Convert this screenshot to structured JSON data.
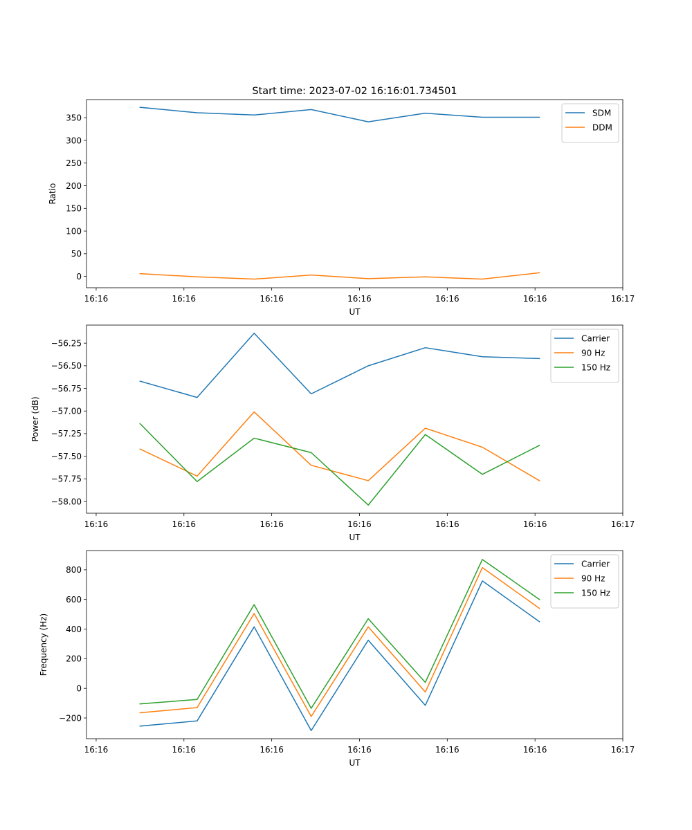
{
  "title": "Start time: 2023-07-02 16:16:01.734501",
  "chart_data": [
    {
      "type": "line",
      "xlabel": "UT",
      "ylabel": "Ratio",
      "x": [
        0.5,
        1.15,
        1.8,
        2.45,
        3.1,
        3.75,
        4.4,
        5.05
      ],
      "xlim": [
        -0.11,
        6.0
      ],
      "xticks": [
        0,
        1,
        2,
        3,
        4,
        5,
        6
      ],
      "xtick_labels": [
        "16:16",
        "16:16",
        "16:16",
        "16:16",
        "16:16",
        "16:16",
        "16:17"
      ],
      "ylim": [
        -25,
        390
      ],
      "yticks": [
        0,
        50,
        100,
        150,
        200,
        250,
        300,
        350
      ],
      "legend_position": "top-right",
      "series": [
        {
          "name": "SDM",
          "color": "#1f77b4",
          "values": [
            373,
            361,
            356,
            368,
            341,
            360,
            351,
            351
          ]
        },
        {
          "name": "DDM",
          "color": "#ff7f0e",
          "values": [
            6,
            -1,
            -6,
            3,
            -5,
            -1,
            -6,
            8
          ]
        }
      ]
    },
    {
      "type": "line",
      "xlabel": "UT",
      "ylabel": "Power (dB)",
      "x": [
        0.5,
        1.15,
        1.8,
        2.45,
        3.1,
        3.75,
        4.4,
        5.05
      ],
      "xlim": [
        -0.11,
        6.0
      ],
      "xticks": [
        0,
        1,
        2,
        3,
        4,
        5,
        6
      ],
      "xtick_labels": [
        "16:16",
        "16:16",
        "16:16",
        "16:16",
        "16:16",
        "16:16",
        "16:17"
      ],
      "ylim": [
        -58.13,
        -56.05
      ],
      "yticks": [
        -58.0,
        -57.75,
        -57.5,
        -57.25,
        -57.0,
        -56.75,
        -56.5,
        -56.25
      ],
      "ytick_labels": [
        "−58.00",
        "−57.75",
        "−57.50",
        "−57.25",
        "−57.00",
        "−56.75",
        "−56.50",
        "−56.25"
      ],
      "legend_position": "top-right",
      "series": [
        {
          "name": "Carrier",
          "color": "#1f77b4",
          "values": [
            -56.67,
            -56.85,
            -56.14,
            -56.81,
            -56.5,
            -56.3,
            -56.4,
            -56.42
          ]
        },
        {
          "name": "90 Hz",
          "color": "#ff7f0e",
          "values": [
            -57.42,
            -57.72,
            -57.01,
            -57.6,
            -57.77,
            -57.19,
            -57.4,
            -57.77
          ]
        },
        {
          "name": "150 Hz",
          "color": "#2ca02c",
          "values": [
            -57.14,
            -57.78,
            -57.3,
            -57.46,
            -58.04,
            -57.26,
            -57.7,
            -57.38
          ]
        }
      ]
    },
    {
      "type": "line",
      "xlabel": "UT",
      "ylabel": "Frequency (Hz)",
      "x": [
        0.5,
        1.15,
        1.8,
        2.45,
        3.1,
        3.75,
        4.4,
        5.05
      ],
      "xlim": [
        -0.11,
        6.0
      ],
      "xticks": [
        0,
        1,
        2,
        3,
        4,
        5,
        6
      ],
      "xtick_labels": [
        "16:16",
        "16:16",
        "16:16",
        "16:16",
        "16:16",
        "16:16",
        "16:17"
      ],
      "ylim": [
        -340,
        930
      ],
      "yticks": [
        -200,
        0,
        200,
        400,
        600,
        800
      ],
      "ytick_labels": [
        "−200",
        "0",
        "200",
        "400",
        "600",
        "800"
      ],
      "legend_position": "top-right",
      "series": [
        {
          "name": "Carrier",
          "color": "#1f77b4",
          "values": [
            -255,
            -220,
            415,
            -285,
            325,
            -115,
            725,
            450
          ]
        },
        {
          "name": "90 Hz",
          "color": "#ff7f0e",
          "values": [
            -165,
            -130,
            505,
            -190,
            415,
            -25,
            815,
            540
          ]
        },
        {
          "name": "150 Hz",
          "color": "#2ca02c",
          "values": [
            -105,
            -75,
            565,
            -135,
            470,
            40,
            870,
            600
          ]
        }
      ]
    }
  ]
}
